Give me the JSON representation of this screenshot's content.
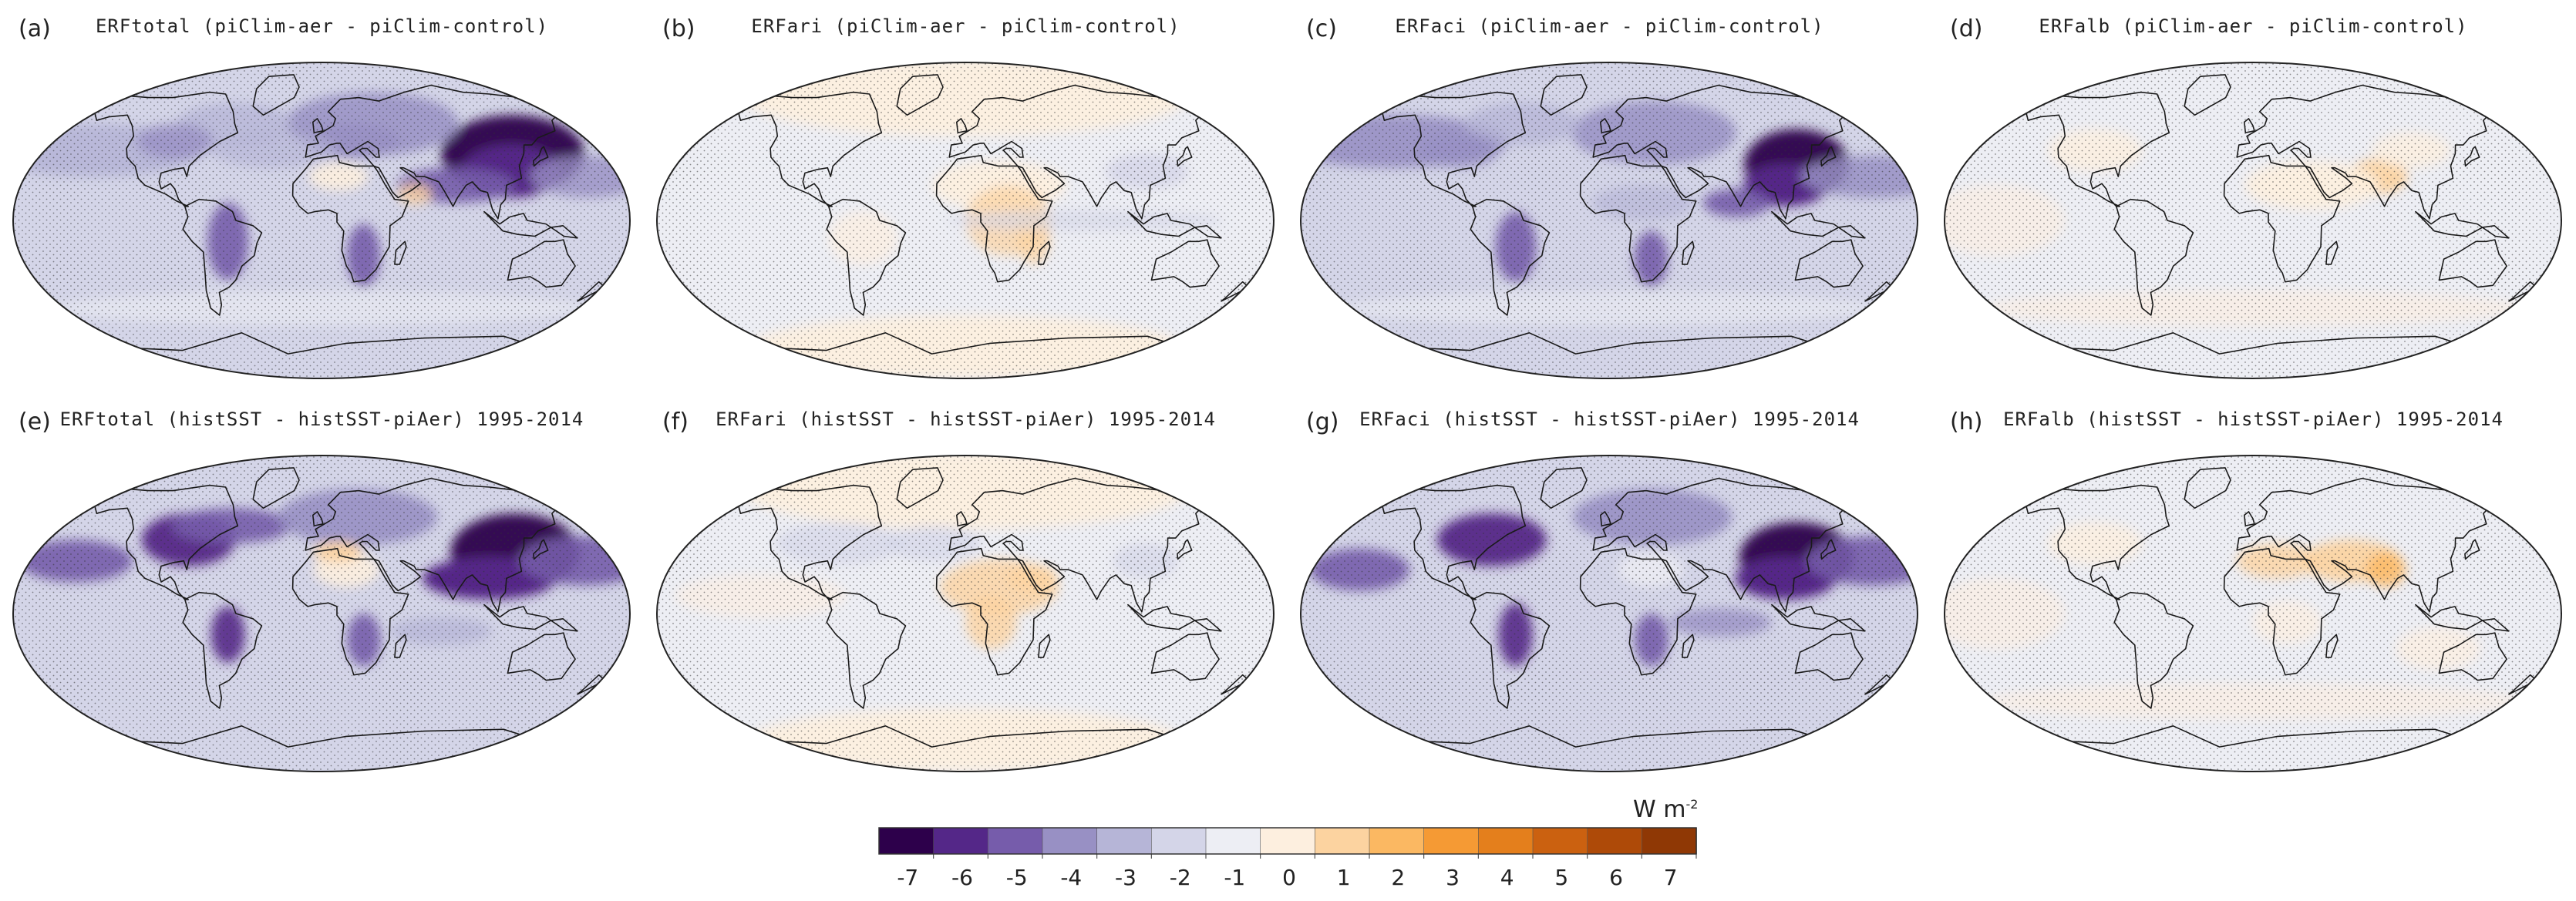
{
  "colors": {
    "scale": [
      "#2d004b",
      "#542788",
      "#765cab",
      "#9890c4",
      "#b6b5d7",
      "#d4d5e8",
      "#edeef4",
      "#fdefdf",
      "#fcd3a0",
      "#fbb862",
      "#f59a34",
      "#e47f1c",
      "#cb6110",
      "#ae4a08",
      "#8f3805"
    ],
    "coast": "#1a1a1a",
    "stipple": "#333333",
    "border": "#222222"
  },
  "colorbar": {
    "unit": "W m",
    "unit_exp": "-2",
    "ticks": [
      "-7",
      "-6",
      "-5",
      "-4",
      "-3",
      "-2",
      "-1",
      "0",
      "1",
      "2",
      "3",
      "4",
      "5",
      "6",
      "7"
    ]
  },
  "panels": [
    {
      "letter": "(a)",
      "title": "ERFtotal (piClim-aer - piClim-control)",
      "field": "total_a"
    },
    {
      "letter": "(b)",
      "title": "ERFari (piClim-aer - piClim-control)",
      "field": "ari_b"
    },
    {
      "letter": "(c)",
      "title": "ERFaci (piClim-aer - piClim-control)",
      "field": "aci_c"
    },
    {
      "letter": "(d)",
      "title": "ERFalb (piClim-aer - piClim-control)",
      "field": "alb_d"
    },
    {
      "letter": "(e)",
      "title": "ERFtotal (histSST - histSST-piAer) 1995-2014",
      "field": "total_e"
    },
    {
      "letter": "(f)",
      "title": "ERFari (histSST - histSST-piAer) 1995-2014",
      "field": "ari_f"
    },
    {
      "letter": "(g)",
      "title": "ERFaci (histSST - histSST-piAer) 1995-2014",
      "field": "aci_g"
    },
    {
      "letter": "(h)",
      "title": "ERFalb (histSST - histSST-piAer) 1995-2014",
      "field": "alb_h"
    }
  ]
}
